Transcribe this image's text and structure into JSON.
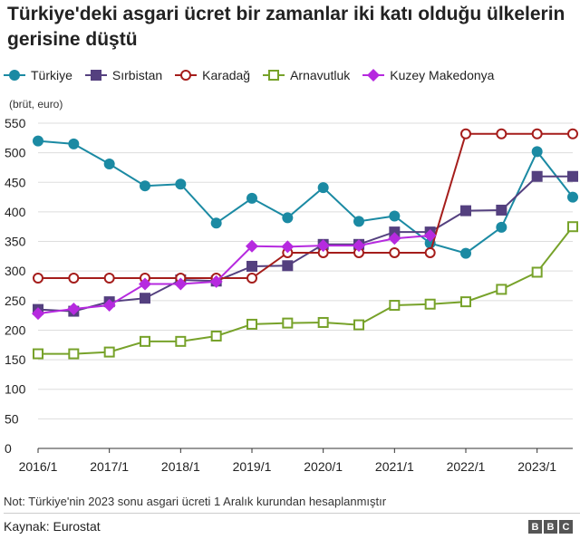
{
  "title": "Türkiye'deki asgari ücret bir zamanlar iki katı olduğu ülkelerin gerisine düştü",
  "unit_label": "(brüt, euro)",
  "note": "Not: Türkiye'nin 2023 sonu asgari ücreti 1 Aralık kurundan hesaplanmıştır",
  "source": "Kaynak: Eurostat",
  "logo_letters": [
    "B",
    "B",
    "C"
  ],
  "chart_data": {
    "type": "line",
    "x": [
      "2016/1",
      "2016/7",
      "2017/1",
      "2017/7",
      "2018/1",
      "2018/7",
      "2019/1",
      "2019/7",
      "2020/1",
      "2020/7",
      "2021/1",
      "2021/7",
      "2022/1",
      "2022/7",
      "2023/1",
      "2023/7"
    ],
    "xticks": [
      "2016/1",
      "2017/1",
      "2018/1",
      "2019/1",
      "2020/1",
      "2021/1",
      "2022/1",
      "2023/1"
    ],
    "yticks": [
      0,
      50,
      100,
      150,
      200,
      250,
      300,
      350,
      400,
      450,
      500,
      550
    ],
    "ylim": [
      0,
      550
    ],
    "grid": true,
    "legend_position": "top",
    "series": [
      {
        "name": "Türkiye",
        "color": "#1b8aa3",
        "marker": "circle-filled",
        "values": [
          520,
          515,
          481,
          444,
          447,
          381,
          423,
          390,
          441,
          384,
          393,
          347,
          330,
          374,
          502,
          425
        ]
      },
      {
        "name": "Sırbistan",
        "color": "#54407f",
        "marker": "square-filled",
        "values": [
          235,
          232,
          248,
          254,
          285,
          283,
          308,
          309,
          345,
          345,
          366,
          366,
          402,
          403,
          460,
          460
        ]
      },
      {
        "name": "Karadağ",
        "color": "#a51d1b",
        "marker": "circle-open",
        "values": [
          288,
          288,
          288,
          288,
          288,
          288,
          288,
          331,
          331,
          331,
          331,
          331,
          532,
          532,
          532,
          532
        ]
      },
      {
        "name": "Arnavutluk",
        "color": "#77a22a",
        "marker": "square-open",
        "values": [
          160,
          160,
          163,
          181,
          181,
          190,
          210,
          212,
          213,
          209,
          242,
          244,
          248,
          269,
          298,
          375
        ]
      },
      {
        "name": "Kuzey Makedonya",
        "color": "#b62adf",
        "marker": "diamond-filled",
        "values": [
          228,
          236,
          242,
          278,
          278,
          282,
          342,
          341,
          343,
          343,
          355,
          360,
          null,
          null,
          null,
          null
        ]
      }
    ]
  }
}
